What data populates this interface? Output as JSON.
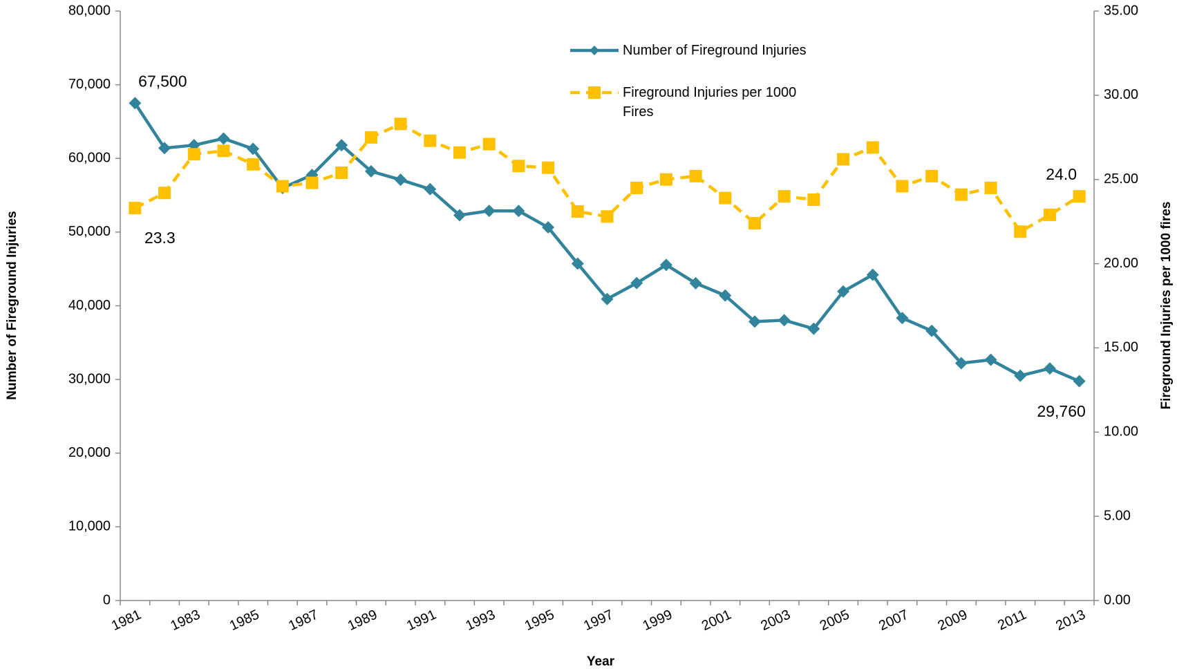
{
  "chart_data": {
    "type": "line",
    "xlabel": "Year",
    "ylabel": "Number of Fireground Injuries",
    "y2label": "Fireground Injuries per 1000 fires",
    "categories": [
      "1981",
      null,
      "1983",
      null,
      "1985",
      null,
      "1987",
      null,
      "1989",
      null,
      "1991",
      null,
      "1993",
      null,
      "1995",
      null,
      "1997",
      null,
      "1999",
      null,
      "2001",
      null,
      "2003",
      null,
      "2005",
      null,
      "2007",
      null,
      "2009",
      null,
      "2011",
      null,
      "2013"
    ],
    "series": [
      {
        "name": "Number of Fireground Injuries",
        "color": "#31849b",
        "marker": "diamond",
        "line_style": "solid",
        "values": [
          67500,
          61400,
          61800,
          62700,
          61300,
          55990,
          57755,
          61790,
          58250,
          57100,
          55830,
          52290,
          52885,
          52875,
          50640,
          45725,
          40920,
          43080,
          45550,
          43065,
          41395,
          37860,
          38045,
          36880,
          41950,
          44210,
          38340,
          36595,
          32205,
          32675,
          30505,
          31490,
          29760
        ],
        "value_labels": [
          "67,500",
          null,
          null,
          null,
          null,
          null,
          null,
          null,
          null,
          null,
          null,
          null,
          null,
          null,
          null,
          null,
          null,
          null,
          null,
          null,
          null,
          null,
          null,
          null,
          null,
          null,
          null,
          null,
          null,
          null,
          null,
          null,
          "29,760"
        ]
      },
      {
        "name": "Fireground Injuries per 1000 Fires",
        "color": "#ffc000",
        "marker": "square",
        "line_style": "dashed",
        "axis": "y2",
        "values": [
          23.3,
          24.2,
          26.5,
          26.7,
          25.9,
          24.6,
          24.8,
          25.4,
          27.5,
          28.3,
          27.3,
          26.6,
          27.1,
          25.8,
          25.7,
          23.1,
          22.8,
          24.5,
          25.0,
          25.2,
          23.9,
          22.4,
          24.0,
          23.8,
          26.2,
          26.9,
          24.6,
          25.2,
          24.1,
          24.5,
          21.9,
          22.9,
          24.0
        ],
        "value_labels": [
          "23.3",
          null,
          null,
          null,
          null,
          null,
          null,
          null,
          null,
          null,
          null,
          null,
          null,
          null,
          null,
          null,
          null,
          null,
          null,
          null,
          null,
          null,
          null,
          null,
          null,
          null,
          null,
          null,
          null,
          null,
          null,
          null,
          "24.0"
        ]
      }
    ],
    "ylim": [
      0,
      80000
    ],
    "yticks": [
      0,
      {
        "value": 10000,
        "label": "10,000"
      },
      {
        "value": 20000,
        "label": "20,000"
      },
      {
        "value": 30000,
        "label": "30,000"
      },
      {
        "value": 40000,
        "label": "40,000"
      },
      {
        "value": 50000,
        "label": "50,000"
      },
      {
        "value": 60000,
        "label": "60,000"
      },
      {
        "value": 70000,
        "label": "70,000"
      },
      {
        "value": 80000,
        "label": "80,000"
      }
    ],
    "y2lim": [
      0,
      35
    ],
    "y2ticks": [
      {
        "value": 0,
        "label": "0.00"
      },
      {
        "value": 5,
        "label": "5.00"
      },
      {
        "value": 10,
        "label": "10.00"
      },
      {
        "value": 15,
        "label": "15.00"
      },
      {
        "value": 20,
        "label": "20.00"
      },
      {
        "value": 25,
        "label": "25.00"
      },
      {
        "value": 30,
        "label": "30.00"
      },
      {
        "value": 35,
        "label": "35.00"
      }
    ],
    "grid": false
  }
}
